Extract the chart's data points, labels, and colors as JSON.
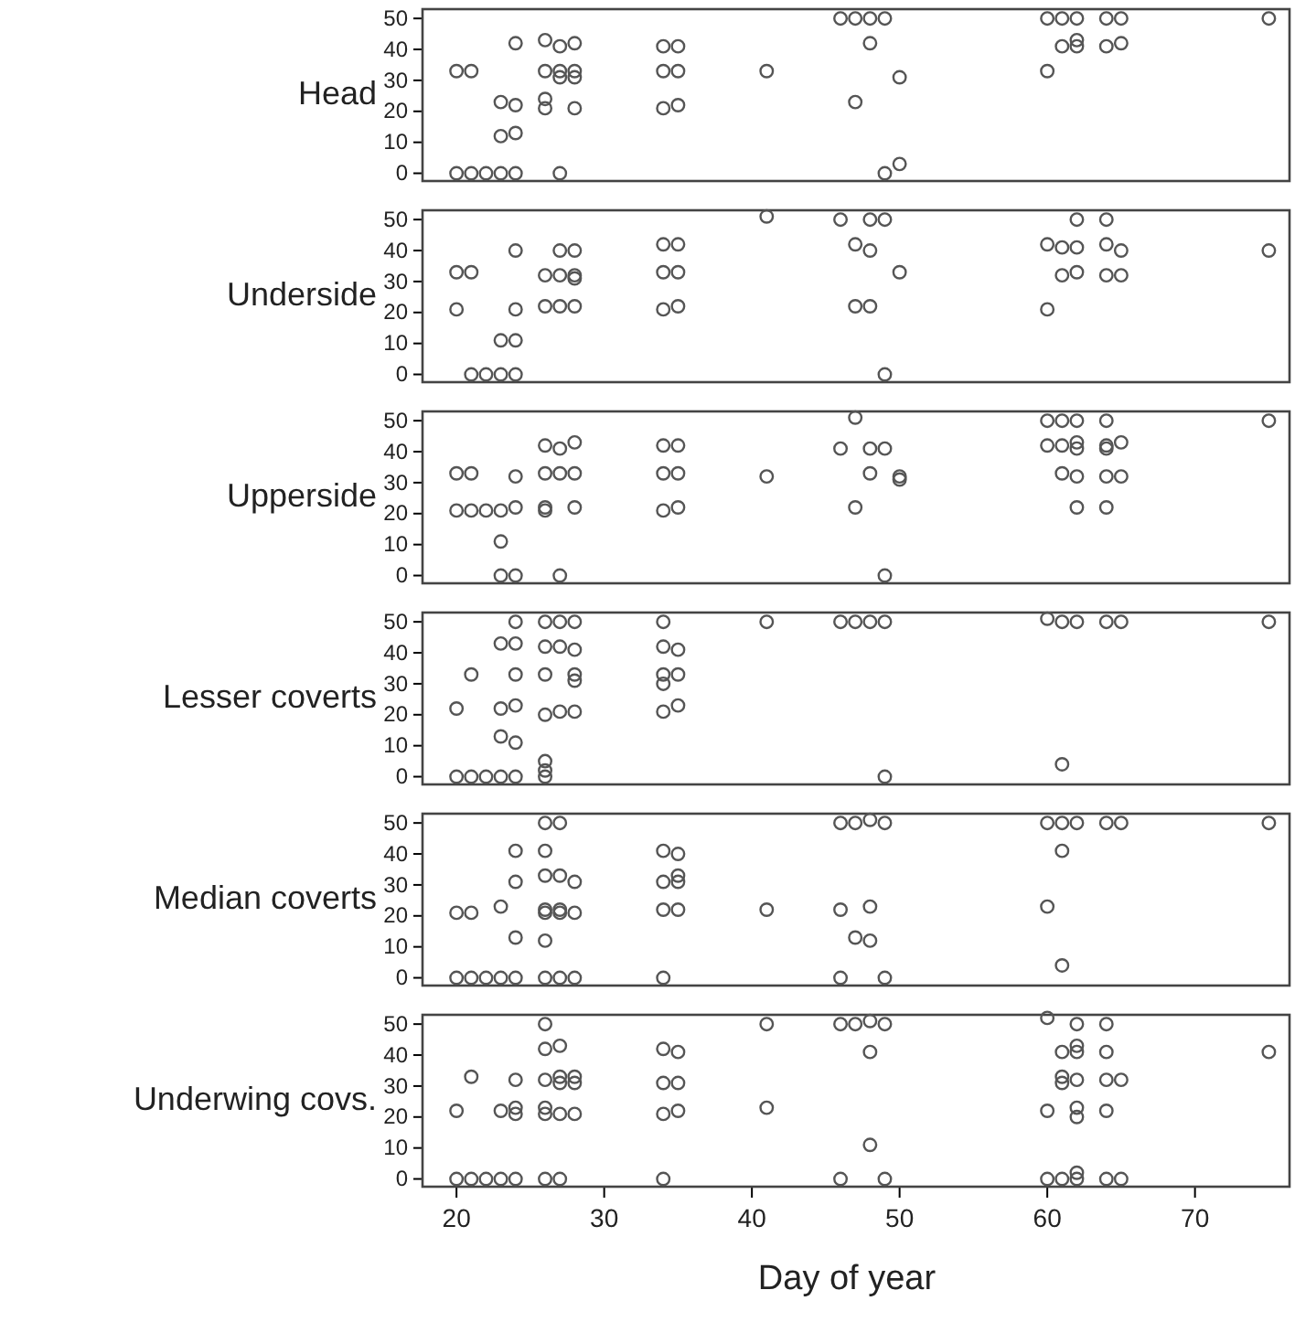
{
  "chart_data": [
    {
      "type": "scatter",
      "ylabel": "Head",
      "xlim": [
        17.7,
        76.4
      ],
      "ylim": [
        -2.5,
        53
      ],
      "yticks": [
        0,
        10,
        20,
        30,
        40,
        50
      ],
      "tick_labels": "y",
      "marker": "circle",
      "grid": false,
      "series": [
        {
          "color": "#555555",
          "x": [
            46,
            47,
            48,
            49,
            60,
            61,
            62,
            64,
            65,
            75,
            24,
            26,
            27,
            28,
            34,
            35,
            48,
            61,
            62,
            62,
            64,
            65,
            20,
            21,
            26,
            27,
            27,
            28,
            28,
            34,
            35,
            41,
            50,
            60,
            23,
            24,
            26,
            26,
            28,
            34,
            35,
            47,
            23,
            24,
            20,
            21,
            22,
            23,
            24,
            27,
            49,
            50
          ],
          "values": [
            50,
            50,
            50,
            50,
            50,
            50,
            50,
            50,
            50,
            50,
            42,
            43,
            41,
            42,
            41,
            41,
            42,
            41,
            43,
            41,
            41,
            42,
            33,
            33,
            33,
            33,
            31,
            33,
            31,
            33,
            33,
            33,
            31,
            33,
            23,
            22,
            24,
            21,
            21,
            21,
            22,
            23,
            12,
            13,
            0,
            0,
            0,
            0,
            0,
            0,
            0,
            3
          ]
        }
      ]
    },
    {
      "type": "scatter",
      "ylabel": "Underside",
      "xlim": [
        17.7,
        76.4
      ],
      "ylim": [
        -2.5,
        53
      ],
      "yticks": [
        0,
        10,
        20,
        30,
        40,
        50
      ],
      "tick_labels": "y",
      "marker": "circle",
      "grid": false,
      "series": [
        {
          "color": "#555555",
          "x": [
            41,
            46,
            48,
            49,
            62,
            64,
            24,
            27,
            28,
            34,
            35,
            47,
            48,
            60,
            61,
            62,
            64,
            65,
            75,
            20,
            21,
            26,
            27,
            28,
            28,
            34,
            35,
            50,
            61,
            62,
            64,
            65,
            20,
            24,
            26,
            27,
            28,
            34,
            35,
            47,
            48,
            60,
            23,
            24,
            21,
            22,
            23,
            24,
            49
          ],
          "values": [
            51,
            50,
            50,
            50,
            50,
            50,
            40,
            40,
            40,
            42,
            42,
            42,
            40,
            42,
            41,
            41,
            42,
            40,
            40,
            33,
            33,
            32,
            32,
            32,
            31,
            33,
            33,
            33,
            32,
            33,
            32,
            32,
            21,
            21,
            22,
            22,
            22,
            21,
            22,
            22,
            22,
            21,
            11,
            11,
            0,
            0,
            0,
            0,
            0
          ]
        }
      ]
    },
    {
      "type": "scatter",
      "ylabel": "Upperside",
      "xlim": [
        17.7,
        76.4
      ],
      "ylim": [
        -2.5,
        53
      ],
      "yticks": [
        0,
        10,
        20,
        30,
        40,
        50
      ],
      "tick_labels": "y",
      "marker": "circle",
      "grid": false,
      "series": [
        {
          "color": "#555555",
          "x": [
            47,
            60,
            61,
            62,
            64,
            75,
            26,
            27,
            28,
            34,
            35,
            46,
            48,
            49,
            60,
            61,
            62,
            62,
            64,
            64,
            65,
            20,
            21,
            24,
            26,
            27,
            28,
            34,
            35,
            41,
            48,
            50,
            50,
            61,
            62,
            64,
            65,
            20,
            21,
            22,
            23,
            24,
            26,
            26,
            28,
            34,
            35,
            47,
            62,
            64,
            23,
            23,
            24,
            27,
            49
          ],
          "values": [
            51,
            50,
            50,
            50,
            50,
            50,
            42,
            41,
            43,
            42,
            42,
            41,
            41,
            41,
            42,
            42,
            43,
            41,
            42,
            41,
            43,
            33,
            33,
            32,
            33,
            33,
            33,
            33,
            33,
            32,
            33,
            32,
            31,
            33,
            32,
            32,
            32,
            21,
            21,
            21,
            21,
            22,
            22,
            21,
            22,
            21,
            22,
            22,
            22,
            22,
            11,
            0,
            0,
            0,
            0
          ]
        }
      ]
    },
    {
      "type": "scatter",
      "ylabel": "Lesser coverts",
      "xlim": [
        17.7,
        76.4
      ],
      "ylim": [
        -2.5,
        53
      ],
      "yticks": [
        0,
        10,
        20,
        30,
        40,
        50
      ],
      "tick_labels": "y",
      "marker": "circle",
      "grid": false,
      "series": [
        {
          "color": "#555555",
          "x": [
            24,
            26,
            27,
            28,
            34,
            41,
            46,
            47,
            48,
            49,
            60,
            61,
            62,
            64,
            65,
            75,
            23,
            24,
            26,
            27,
            28,
            34,
            35,
            21,
            24,
            26,
            28,
            28,
            34,
            34,
            35,
            20,
            23,
            24,
            26,
            27,
            28,
            34,
            35,
            23,
            24,
            20,
            21,
            22,
            23,
            24,
            26,
            26,
            26,
            49,
            61
          ],
          "values": [
            50,
            50,
            50,
            50,
            50,
            50,
            50,
            50,
            50,
            50,
            51,
            50,
            50,
            50,
            50,
            50,
            43,
            43,
            42,
            42,
            41,
            42,
            41,
            33,
            33,
            33,
            33,
            31,
            33,
            30,
            33,
            22,
            22,
            23,
            20,
            21,
            21,
            21,
            23,
            13,
            11,
            0,
            0,
            0,
            0,
            0,
            5,
            2,
            0,
            0,
            4
          ]
        }
      ]
    },
    {
      "type": "scatter",
      "ylabel": "Median coverts",
      "xlim": [
        17.7,
        76.4
      ],
      "ylim": [
        -2.5,
        53
      ],
      "yticks": [
        0,
        10,
        20,
        30,
        40,
        50
      ],
      "tick_labels": "y",
      "marker": "circle",
      "grid": false,
      "series": [
        {
          "color": "#555555",
          "x": [
            26,
            27,
            46,
            47,
            48,
            49,
            60,
            61,
            62,
            64,
            65,
            75,
            24,
            26,
            34,
            35,
            61,
            24,
            26,
            27,
            28,
            34,
            35,
            35,
            20,
            21,
            23,
            26,
            26,
            27,
            27,
            28,
            34,
            35,
            41,
            46,
            48,
            60,
            24,
            26,
            47,
            48,
            61,
            20,
            21,
            22,
            23,
            24,
            26,
            27,
            28,
            34,
            46,
            49
          ],
          "values": [
            50,
            50,
            50,
            50,
            51,
            50,
            50,
            50,
            50,
            50,
            50,
            50,
            41,
            41,
            41,
            40,
            41,
            31,
            33,
            33,
            31,
            31,
            33,
            31,
            21,
            21,
            23,
            22,
            21,
            22,
            21,
            21,
            22,
            22,
            22,
            22,
            23,
            23,
            13,
            12,
            13,
            12,
            4,
            0,
            0,
            0,
            0,
            0,
            0,
            0,
            0,
            0,
            0,
            0
          ]
        }
      ]
    },
    {
      "type": "scatter",
      "ylabel": "Underwing covs.",
      "xlabel": "Day of year",
      "xlim": [
        17.7,
        76.4
      ],
      "xticks": [
        20,
        30,
        40,
        50,
        60,
        70
      ],
      "ylim": [
        -2.5,
        53
      ],
      "yticks": [
        0,
        10,
        20,
        30,
        40,
        50
      ],
      "marker": "circle",
      "grid": false,
      "series": [
        {
          "color": "#555555",
          "x": [
            26,
            41,
            46,
            47,
            48,
            49,
            60,
            62,
            64,
            26,
            27,
            34,
            35,
            48,
            61,
            62,
            62,
            64,
            75,
            21,
            24,
            26,
            27,
            27,
            28,
            28,
            34,
            35,
            61,
            61,
            62,
            64,
            65,
            20,
            23,
            24,
            24,
            26,
            26,
            27,
            28,
            34,
            35,
            41,
            60,
            62,
            62,
            64,
            48,
            20,
            21,
            22,
            23,
            24,
            26,
            27,
            34,
            46,
            49,
            60,
            61,
            62,
            64,
            65,
            62
          ],
          "values": [
            50,
            50,
            50,
            50,
            51,
            50,
            52,
            50,
            50,
            42,
            43,
            42,
            41,
            41,
            41,
            43,
            41,
            41,
            41,
            33,
            32,
            32,
            33,
            31,
            33,
            31,
            31,
            31,
            33,
            31,
            32,
            32,
            32,
            22,
            22,
            23,
            21,
            23,
            21,
            21,
            21,
            21,
            22,
            23,
            22,
            23,
            20,
            22,
            11,
            0,
            0,
            0,
            0,
            0,
            0,
            0,
            0,
            0,
            0,
            0,
            0,
            0,
            0,
            0,
            2
          ]
        }
      ]
    }
  ]
}
